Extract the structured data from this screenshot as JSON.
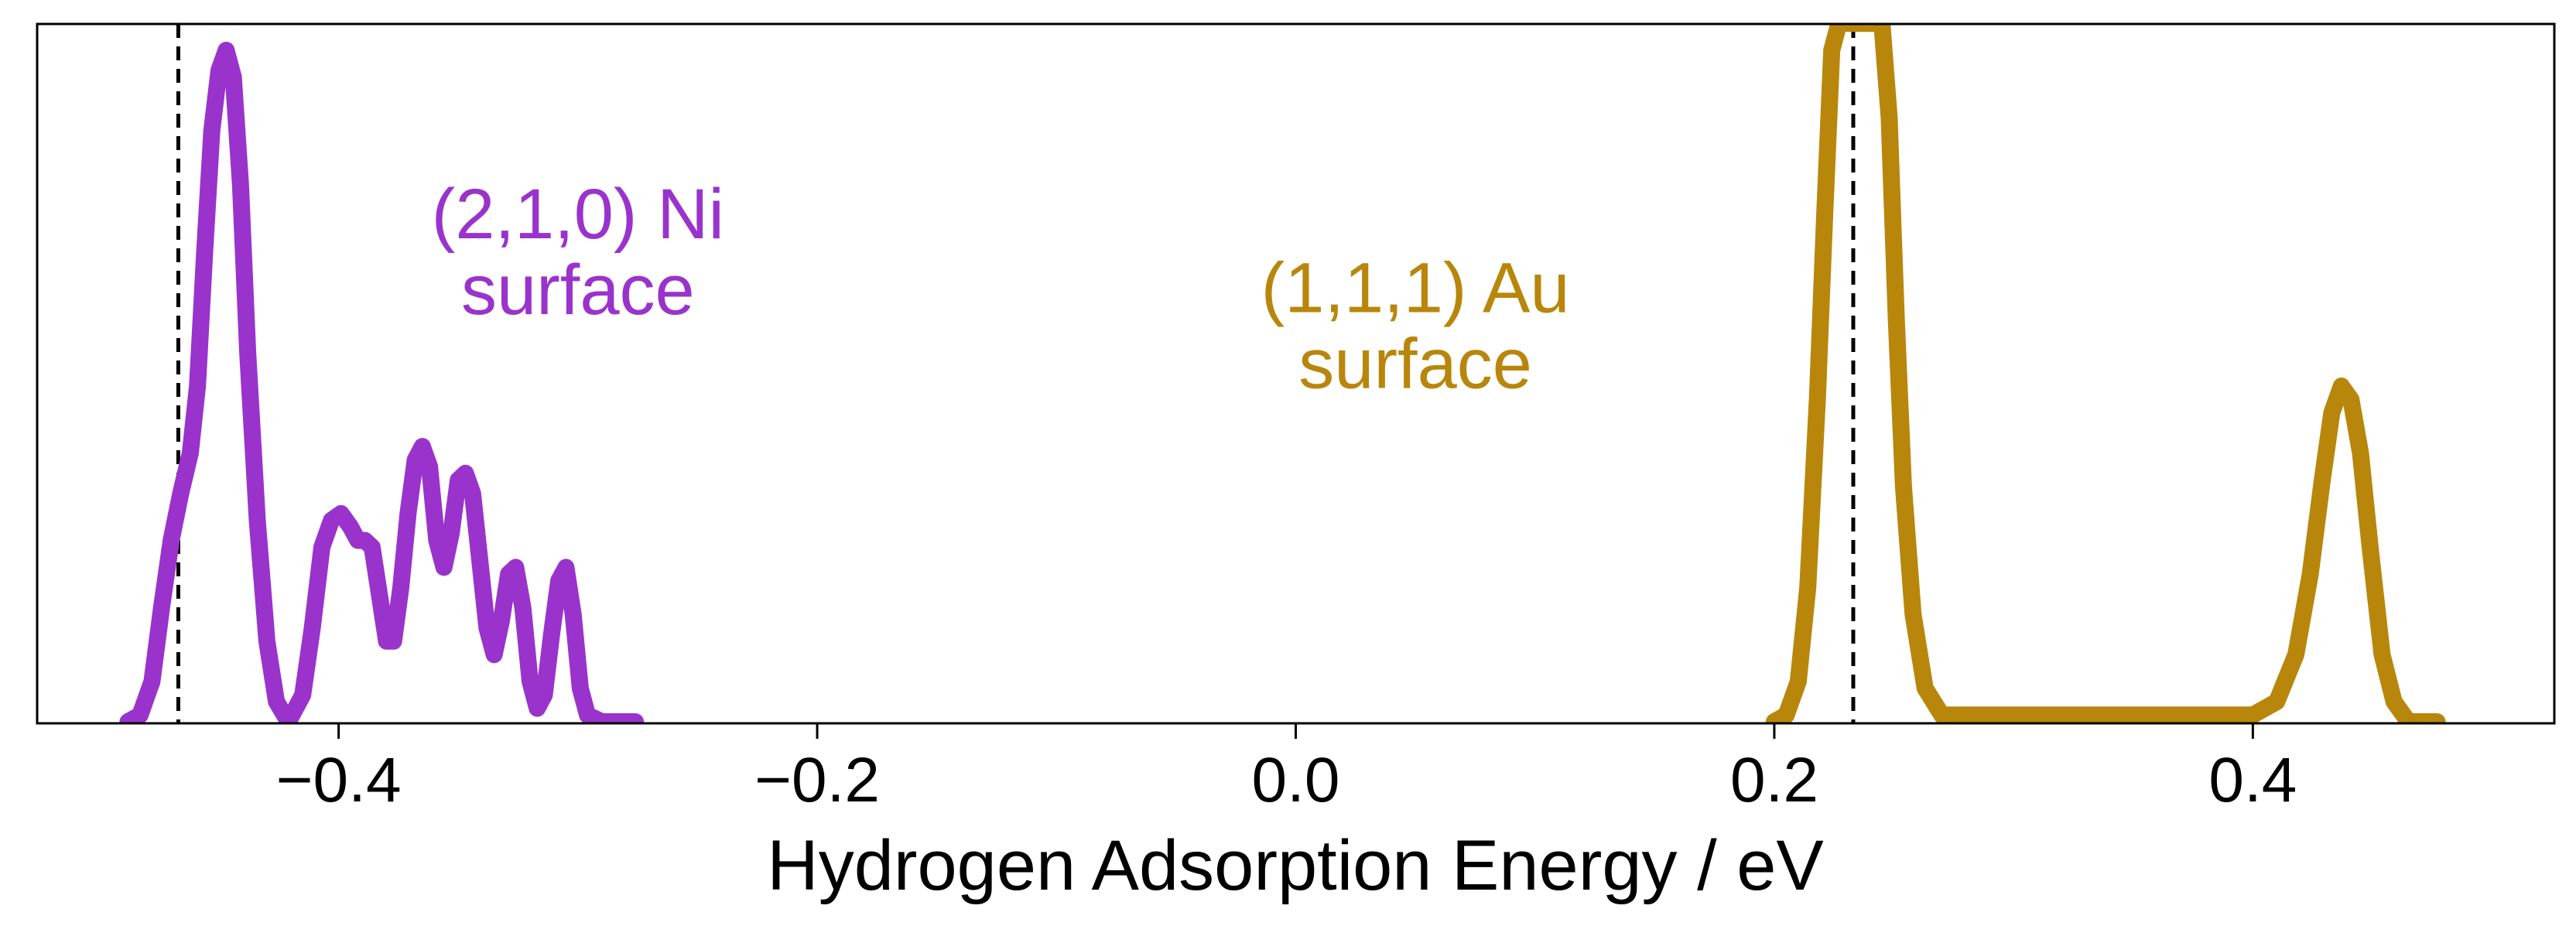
{
  "chart_data": {
    "type": "line",
    "title": "",
    "xlabel": "Hydrogen Adsorption Energy / eV",
    "ylabel": "",
    "xlim": [
      -0.526,
      0.526
    ],
    "ylim": [
      0,
      1
    ],
    "x_ticks": [
      -0.4,
      -0.2,
      0.0,
      0.2,
      0.4
    ],
    "x_tick_labels": [
      "−0.4",
      "−0.2",
      "0.0",
      "0.2",
      "0.4"
    ],
    "y_ticks": [],
    "grid": false,
    "legend": "none",
    "reference_lines": [
      {
        "x": -0.467,
        "style": "dashed",
        "color": "#000000"
      },
      {
        "x": 0.233,
        "style": "dashed",
        "color": "#000000"
      }
    ],
    "annotations": [
      {
        "lines": [
          "(2,1,0) Ni",
          "surface"
        ],
        "x": -0.3,
        "y": 0.72,
        "color": "#9933CC"
      },
      {
        "lines": [
          "(1,1,1) Au",
          "surface"
        ],
        "x": 0.05,
        "y": 0.61,
        "color": "#B8860B"
      }
    ],
    "series": [
      {
        "color": "#9933CC",
        "points": [
          [
            -0.488,
            0.0
          ],
          [
            -0.483,
            0.01
          ],
          [
            -0.478,
            0.06
          ],
          [
            -0.474,
            0.17
          ],
          [
            -0.47,
            0.27
          ],
          [
            -0.466,
            0.34
          ],
          [
            -0.462,
            0.4
          ],
          [
            -0.459,
            0.5
          ],
          [
            -0.456,
            0.7
          ],
          [
            -0.453,
            0.88
          ],
          [
            -0.45,
            0.97
          ],
          [
            -0.447,
            1.0
          ],
          [
            -0.444,
            0.96
          ],
          [
            -0.441,
            0.8
          ],
          [
            -0.438,
            0.55
          ],
          [
            -0.434,
            0.3
          ],
          [
            -0.43,
            0.12
          ],
          [
            -0.426,
            0.03
          ],
          [
            -0.421,
            0.0
          ],
          [
            -0.415,
            0.04
          ],
          [
            -0.411,
            0.14
          ],
          [
            -0.407,
            0.26
          ],
          [
            -0.403,
            0.3
          ],
          [
            -0.399,
            0.31
          ],
          [
            -0.395,
            0.29
          ],
          [
            -0.392,
            0.27
          ],
          [
            -0.389,
            0.27
          ],
          [
            -0.386,
            0.26
          ],
          [
            -0.383,
            0.19
          ],
          [
            -0.38,
            0.12
          ],
          [
            -0.377,
            0.12
          ],
          [
            -0.374,
            0.2
          ],
          [
            -0.371,
            0.31
          ],
          [
            -0.368,
            0.39
          ],
          [
            -0.365,
            0.41
          ],
          [
            -0.362,
            0.38
          ],
          [
            -0.359,
            0.27
          ],
          [
            -0.356,
            0.23
          ],
          [
            -0.353,
            0.28
          ],
          [
            -0.35,
            0.36
          ],
          [
            -0.347,
            0.37
          ],
          [
            -0.344,
            0.34
          ],
          [
            -0.341,
            0.24
          ],
          [
            -0.338,
            0.14
          ],
          [
            -0.335,
            0.1
          ],
          [
            -0.332,
            0.15
          ],
          [
            -0.329,
            0.22
          ],
          [
            -0.326,
            0.23
          ],
          [
            -0.323,
            0.17
          ],
          [
            -0.32,
            0.06
          ],
          [
            -0.317,
            0.02
          ],
          [
            -0.314,
            0.04
          ],
          [
            -0.311,
            0.13
          ],
          [
            -0.308,
            0.21
          ],
          [
            -0.305,
            0.23
          ],
          [
            -0.302,
            0.16
          ],
          [
            -0.299,
            0.05
          ],
          [
            -0.296,
            0.01
          ],
          [
            -0.29,
            0.0
          ],
          [
            -0.276,
            0.0
          ]
        ]
      },
      {
        "color": "#B8860B",
        "points": [
          [
            0.2,
            0.0
          ],
          [
            0.205,
            0.01
          ],
          [
            0.21,
            0.06
          ],
          [
            0.214,
            0.2
          ],
          [
            0.218,
            0.48
          ],
          [
            0.221,
            0.75
          ],
          [
            0.224,
            1.0
          ],
          [
            0.227,
            1.04
          ],
          [
            0.23,
            1.04
          ],
          [
            0.233,
            1.04
          ],
          [
            0.236,
            1.04
          ],
          [
            0.239,
            1.04
          ],
          [
            0.242,
            1.04
          ],
          [
            0.245,
            1.04
          ],
          [
            0.248,
            0.9
          ],
          [
            0.251,
            0.6
          ],
          [
            0.254,
            0.35
          ],
          [
            0.258,
            0.16
          ],
          [
            0.263,
            0.05
          ],
          [
            0.27,
            0.01
          ],
          [
            0.285,
            0.01
          ],
          [
            0.32,
            0.01
          ],
          [
            0.36,
            0.01
          ],
          [
            0.4,
            0.01
          ],
          [
            0.41,
            0.03
          ],
          [
            0.418,
            0.1
          ],
          [
            0.424,
            0.22
          ],
          [
            0.429,
            0.36
          ],
          [
            0.433,
            0.46
          ],
          [
            0.437,
            0.5
          ],
          [
            0.441,
            0.48
          ],
          [
            0.445,
            0.4
          ],
          [
            0.449,
            0.26
          ],
          [
            0.454,
            0.1
          ],
          [
            0.459,
            0.03
          ],
          [
            0.465,
            0.0
          ],
          [
            0.477,
            0.0
          ]
        ]
      }
    ]
  }
}
